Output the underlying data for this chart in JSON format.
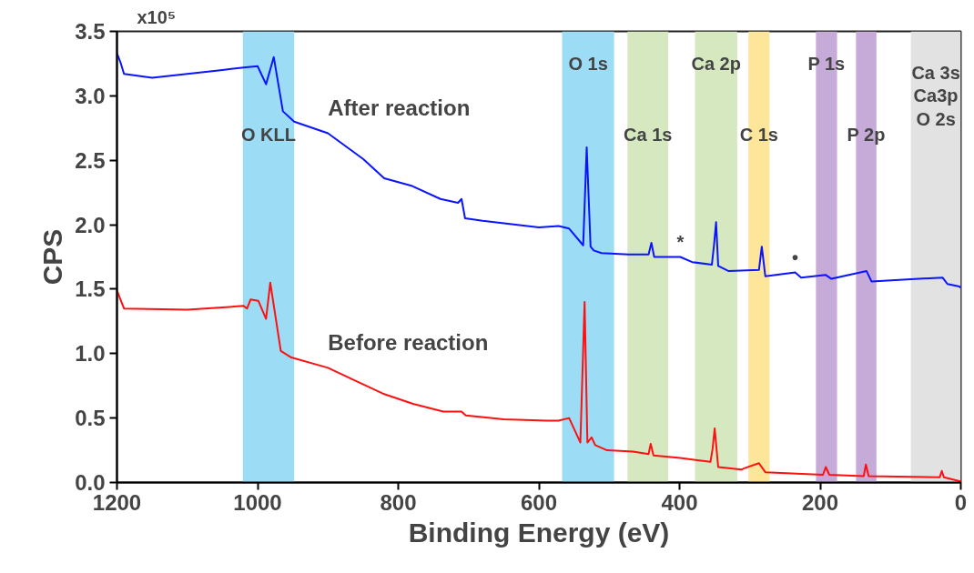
{
  "chart_data": {
    "type": "line",
    "xlabel": "Binding Energy (eV)",
    "ylabel": "CPS",
    "xlim": [
      1200,
      0
    ],
    "xticks": [
      1200,
      1000,
      800,
      600,
      400,
      200,
      0
    ],
    "ylim": [
      0,
      3.5
    ],
    "yticks": [
      {
        "value": 0,
        "label": "0.0"
      },
      0.5,
      {
        "value": 1,
        "label": "1.0"
      },
      1.5,
      {
        "value": 2,
        "label": "2.0"
      },
      2.5,
      {
        "value": 3,
        "label": "3.0"
      },
      3.5
    ],
    "grid": false,
    "legend": false,
    "marker": "none",
    "line_style": "solid",
    "series": [
      {
        "name": "After reaction",
        "color": "#0a14ff",
        "x": [
          1200,
          1195,
          1190,
          1150,
          1100,
          1050,
          1020,
          1000,
          988,
          977,
          964,
          948,
          900,
          850,
          820,
          780,
          740,
          715,
          710,
          705,
          680,
          600,
          572,
          557,
          537,
          532,
          526.5,
          522,
          511,
          472.5,
          444,
          440,
          436,
          399,
          382,
          354,
          351,
          348,
          345,
          330,
          287,
          283,
          278,
          235.6,
          227,
          192,
          184,
          134,
          127,
          26,
          19,
          2,
          0
        ],
        "values": [
          3.33,
          3.26,
          3.17,
          3.14,
          3.17,
          3.2,
          3.22,
          3.23,
          3.09,
          3.3,
          2.88,
          2.8,
          2.71,
          2.51,
          2.36,
          2.3,
          2.2,
          2.17,
          2.2,
          2.05,
          2.03,
          1.98,
          1.99,
          1.97,
          1.84,
          2.6,
          1.83,
          1.8,
          1.78,
          1.77,
          1.77,
          1.86,
          1.75,
          1.75,
          1.71,
          1.69,
          1.84,
          2.02,
          1.68,
          1.64,
          1.65,
          1.83,
          1.6,
          1.63,
          1.59,
          1.61,
          1.58,
          1.64,
          1.56,
          1.59,
          1.54,
          1.52,
          1.51
        ]
      },
      {
        "name": "Before reaction",
        "color": "#ff1010",
        "x": [
          1200,
          1195,
          1190,
          1100,
          1020,
          1015,
          1010,
          999,
          988,
          982,
          967,
          952,
          900,
          865,
          822,
          779,
          736,
          710,
          704,
          650,
          589,
          572,
          557,
          541,
          535,
          531,
          525,
          520,
          503,
          466,
          444,
          441,
          437,
          399,
          356,
          353,
          350,
          345,
          312,
          308,
          287,
          278,
          196,
          192,
          187,
          138,
          135,
          131,
          30,
          27,
          24,
          2,
          0
        ],
        "values": [
          1.49,
          1.42,
          1.35,
          1.34,
          1.37,
          1.35,
          1.42,
          1.41,
          1.27,
          1.55,
          1.02,
          0.97,
          0.89,
          0.8,
          0.69,
          0.61,
          0.55,
          0.55,
          0.52,
          0.49,
          0.48,
          0.48,
          0.5,
          0.31,
          1.4,
          0.31,
          0.35,
          0.29,
          0.25,
          0.24,
          0.22,
          0.3,
          0.21,
          0.19,
          0.16,
          0.26,
          0.42,
          0.12,
          0.1,
          0.11,
          0.15,
          0.08,
          0.06,
          0.12,
          0.06,
          0.05,
          0.14,
          0.05,
          0.04,
          0.09,
          0.04,
          0.01,
          0.01
        ]
      }
    ],
    "bands": [
      {
        "axis": "x",
        "from": 1021,
        "to": 948,
        "color": "#9ddcf5",
        "label": "O KLL"
      },
      {
        "axis": "x",
        "from": 567,
        "to": 493,
        "color": "#9ddcf5",
        "label": "O 1s"
      },
      {
        "axis": "x",
        "from": 474,
        "to": 416,
        "color": "#d5e8c0",
        "label": "Ca 1s"
      },
      {
        "axis": "x",
        "from": 378,
        "to": 318,
        "color": "#d5e8c0",
        "label": "Ca 2p"
      },
      {
        "axis": "x",
        "from": 302,
        "to": 272,
        "color": "#fde59a",
        "label": "C 1s"
      },
      {
        "axis": "x",
        "from": 206,
        "to": 176,
        "color": "#c6aad8",
        "label": "P 1s"
      },
      {
        "axis": "x",
        "from": 149,
        "to": 120,
        "color": "#c6aad8",
        "label": "P 2p"
      },
      {
        "axis": "x",
        "from": 71,
        "to": 0,
        "color": "#e2e2e2",
        "label": "Ca 3s\nCa3p\nO 2s"
      }
    ],
    "annotations": [
      "x10⁵",
      {
        "text": "*",
        "x": 399,
        "y": 1.75
      },
      {
        "text": "•",
        "x": 235.6,
        "y": 1.63
      }
    ]
  }
}
